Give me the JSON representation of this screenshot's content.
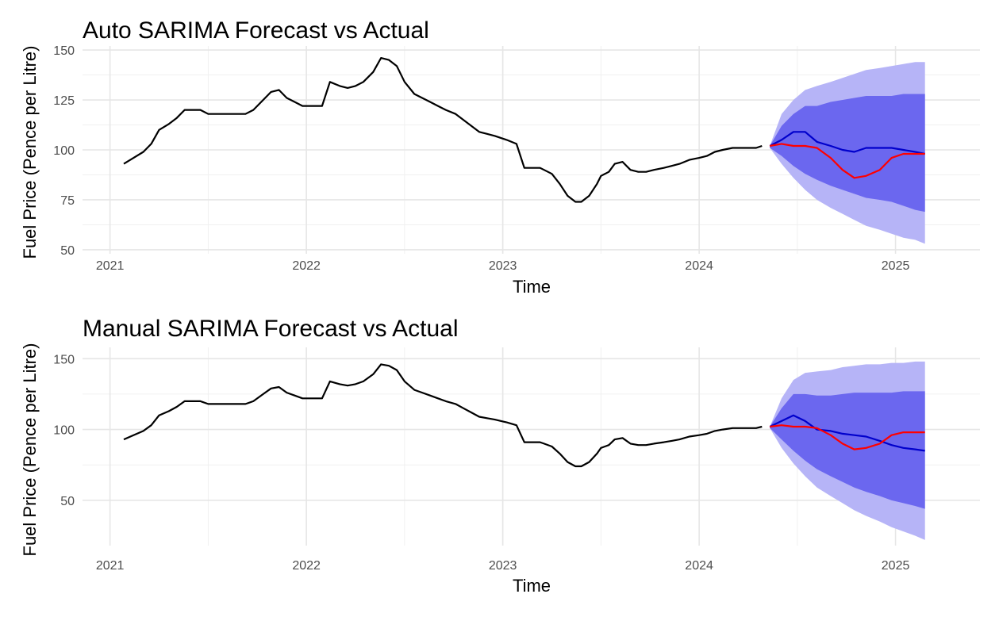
{
  "chart_data": [
    {
      "type": "line",
      "title": "Auto SARIMA Forecast vs Actual",
      "xlabel": "Time",
      "ylabel": "Fuel Price (Pence per Litre)",
      "xlim": [
        2020.86,
        2025.43
      ],
      "ylim": [
        48,
        152
      ],
      "x_ticks": [
        2021,
        2022,
        2023,
        2024,
        2025
      ],
      "x_tick_labels": [
        "2021",
        "2022",
        "2023",
        "2024",
        "2025"
      ],
      "y_ticks": [
        50,
        75,
        100,
        125,
        150
      ],
      "y_tick_labels": [
        "50",
        "75",
        "100",
        "125",
        "150"
      ],
      "grid": true,
      "legend": "none",
      "colors": {
        "history": "#000000",
        "forecast": "#0000cc",
        "actual": "#ff0000",
        "band80": "#6b67ef",
        "band95": "#b6b4f7"
      },
      "history": {
        "x": [
          2021.07,
          2021.12,
          2021.17,
          2021.21,
          2021.25,
          2021.3,
          2021.34,
          2021.38,
          2021.42,
          2021.46,
          2021.5,
          2021.55,
          2021.59,
          2021.63,
          2021.69,
          2021.73,
          2021.78,
          2021.82,
          2021.86,
          2021.9,
          2021.94,
          2021.98,
          2022.04,
          2022.08,
          2022.12,
          2022.17,
          2022.21,
          2022.25,
          2022.29,
          2022.34,
          2022.38,
          2022.42,
          2022.46,
          2022.5,
          2022.55,
          2022.59,
          2022.63,
          2022.67,
          2022.71,
          2022.76,
          2022.8,
          2022.84,
          2022.88,
          2022.92,
          2022.96,
          2023.02,
          2023.07,
          2023.11,
          2023.15,
          2023.19,
          2023.21,
          2023.25,
          2023.29,
          2023.33,
          2023.37,
          2023.4,
          2023.44,
          2023.48,
          2023.5,
          2023.54,
          2023.57,
          2023.61,
          2023.65,
          2023.69,
          2023.73,
          2023.77,
          2023.82,
          2023.86,
          2023.9,
          2023.95,
          2024.0,
          2024.04,
          2024.08,
          2024.12,
          2024.17,
          2024.21,
          2024.25,
          2024.29,
          2024.32
        ],
        "y": [
          93,
          96,
          99,
          103,
          110,
          113,
          116,
          120,
          120,
          120,
          118,
          118,
          118,
          118,
          118,
          120,
          125,
          129,
          130,
          126,
          124,
          122,
          122,
          122,
          134,
          132,
          131,
          132,
          134,
          139,
          146,
          145,
          142,
          134,
          128,
          126,
          124,
          122,
          120,
          118,
          115,
          112,
          109,
          108,
          107,
          105,
          103,
          91,
          91,
          91,
          90,
          88,
          83,
          77,
          74,
          74,
          77,
          83,
          87,
          89,
          93,
          94,
          90,
          89,
          89,
          90,
          91,
          92,
          93,
          95,
          96,
          97,
          99,
          100,
          101,
          101,
          101,
          101,
          102
        ],
        "values": [
          93,
          96,
          99,
          103,
          110,
          113,
          116,
          120,
          120,
          120,
          118,
          118,
          118,
          118,
          118,
          120,
          125,
          129,
          130,
          126,
          124,
          122,
          122,
          122,
          134,
          132,
          131,
          132,
          134,
          139,
          146,
          145,
          142,
          134,
          128,
          126,
          124,
          122,
          120,
          118,
          115,
          112,
          109,
          108,
          107,
          105,
          103,
          91,
          91,
          91,
          90,
          88,
          83,
          77,
          74,
          74,
          77,
          83,
          87,
          89,
          93,
          94,
          90,
          89,
          89,
          90,
          91,
          92,
          93,
          95,
          96,
          97,
          99,
          100,
          101,
          101,
          101,
          101,
          102
        ]
      },
      "forecast": {
        "x": [
          2024.36,
          2024.42,
          2024.48,
          2024.54,
          2024.6,
          2024.67,
          2024.73,
          2024.79,
          2024.85,
          2024.92,
          2024.98,
          2025.04,
          2025.1,
          2025.15
        ],
        "mean": [
          102,
          105,
          109,
          109,
          104,
          102,
          100,
          99,
          101,
          101,
          101,
          100,
          99,
          98
        ],
        "lo80": [
          101,
          97,
          92,
          88,
          85,
          82,
          80,
          78,
          76,
          75,
          74,
          72,
          70,
          69
        ],
        "hi80": [
          102,
          112,
          118,
          122,
          122,
          124,
          125,
          126,
          127,
          127,
          127,
          128,
          128,
          128
        ],
        "lo95": [
          101,
          93,
          86,
          80,
          75,
          71,
          68,
          65,
          62,
          60,
          58,
          56,
          55,
          53
        ],
        "hi95": [
          102,
          118,
          125,
          130,
          132,
          134,
          136,
          138,
          140,
          141,
          142,
          143,
          144,
          144
        ]
      },
      "actual": {
        "x": [
          2024.36,
          2024.42,
          2024.48,
          2024.54,
          2024.6,
          2024.67,
          2024.73,
          2024.79,
          2024.85,
          2024.92,
          2024.98,
          2025.04,
          2025.1,
          2025.15
        ],
        "values": [
          102,
          103,
          102,
          102,
          101,
          96,
          90,
          86,
          87,
          90,
          96,
          98,
          98,
          98
        ]
      }
    },
    {
      "type": "line",
      "title": "Manual SARIMA Forecast vs Actual",
      "xlabel": "Time",
      "ylabel": "Fuel Price (Pence per Litre)",
      "xlim": [
        2020.86,
        2025.43
      ],
      "ylim": [
        18,
        158
      ],
      "x_ticks": [
        2021,
        2022,
        2023,
        2024,
        2025
      ],
      "x_tick_labels": [
        "2021",
        "2022",
        "2023",
        "2024",
        "2025"
      ],
      "y_ticks": [
        50,
        100,
        150
      ],
      "y_tick_labels": [
        "50",
        "100",
        "150"
      ],
      "grid": true,
      "legend": "none",
      "colors": {
        "history": "#000000",
        "forecast": "#0000cc",
        "actual": "#ff0000",
        "band80": "#6b67ef",
        "band95": "#b6b4f7"
      },
      "history": {
        "x": [
          2021.07,
          2021.12,
          2021.17,
          2021.21,
          2021.25,
          2021.3,
          2021.34,
          2021.38,
          2021.42,
          2021.46,
          2021.5,
          2021.55,
          2021.59,
          2021.63,
          2021.69,
          2021.73,
          2021.78,
          2021.82,
          2021.86,
          2021.9,
          2021.94,
          2021.98,
          2022.04,
          2022.08,
          2022.12,
          2022.17,
          2022.21,
          2022.25,
          2022.29,
          2022.34,
          2022.38,
          2022.42,
          2022.46,
          2022.5,
          2022.55,
          2022.59,
          2022.63,
          2022.67,
          2022.71,
          2022.76,
          2022.8,
          2022.84,
          2022.88,
          2022.92,
          2022.96,
          2023.02,
          2023.07,
          2023.11,
          2023.15,
          2023.19,
          2023.21,
          2023.25,
          2023.29,
          2023.33,
          2023.37,
          2023.4,
          2023.44,
          2023.48,
          2023.5,
          2023.54,
          2023.57,
          2023.61,
          2023.65,
          2023.69,
          2023.73,
          2023.77,
          2023.82,
          2023.86,
          2023.9,
          2023.95,
          2024.0,
          2024.04,
          2024.08,
          2024.12,
          2024.17,
          2024.21,
          2024.25,
          2024.29,
          2024.32
        ],
        "values": [
          93,
          96,
          99,
          103,
          110,
          113,
          116,
          120,
          120,
          120,
          118,
          118,
          118,
          118,
          118,
          120,
          125,
          129,
          130,
          126,
          124,
          122,
          122,
          122,
          134,
          132,
          131,
          132,
          134,
          139,
          146,
          145,
          142,
          134,
          128,
          126,
          124,
          122,
          120,
          118,
          115,
          112,
          109,
          108,
          107,
          105,
          103,
          91,
          91,
          91,
          90,
          88,
          83,
          77,
          74,
          74,
          77,
          83,
          87,
          89,
          93,
          94,
          90,
          89,
          89,
          90,
          91,
          92,
          93,
          95,
          96,
          97,
          99,
          100,
          101,
          101,
          101,
          101,
          102
        ]
      },
      "forecast": {
        "x": [
          2024.36,
          2024.42,
          2024.48,
          2024.54,
          2024.6,
          2024.67,
          2024.73,
          2024.79,
          2024.85,
          2024.92,
          2024.98,
          2025.04,
          2025.1,
          2025.15
        ],
        "mean": [
          102,
          106,
          110,
          106,
          100,
          99,
          97,
          96,
          95,
          92,
          89,
          87,
          86,
          85
        ],
        "lo80": [
          101,
          93,
          85,
          78,
          72,
          67,
          63,
          59,
          56,
          53,
          50,
          48,
          46,
          44
        ],
        "hi80": [
          102,
          115,
          125,
          125,
          124,
          124,
          125,
          126,
          126,
          126,
          126,
          127,
          127,
          127
        ],
        "lo95": [
          101,
          87,
          76,
          67,
          59,
          53,
          48,
          43,
          39,
          35,
          31,
          28,
          25,
          22
        ],
        "hi95": [
          102,
          122,
          135,
          140,
          141,
          142,
          144,
          145,
          146,
          146,
          147,
          147,
          148,
          148
        ]
      },
      "actual": {
        "x": [
          2024.36,
          2024.42,
          2024.48,
          2024.54,
          2024.6,
          2024.67,
          2024.73,
          2024.79,
          2024.85,
          2024.92,
          2024.98,
          2025.04,
          2025.1,
          2025.15
        ],
        "values": [
          102,
          103,
          102,
          102,
          101,
          96,
          90,
          86,
          87,
          90,
          96,
          98,
          98,
          98
        ]
      }
    }
  ]
}
